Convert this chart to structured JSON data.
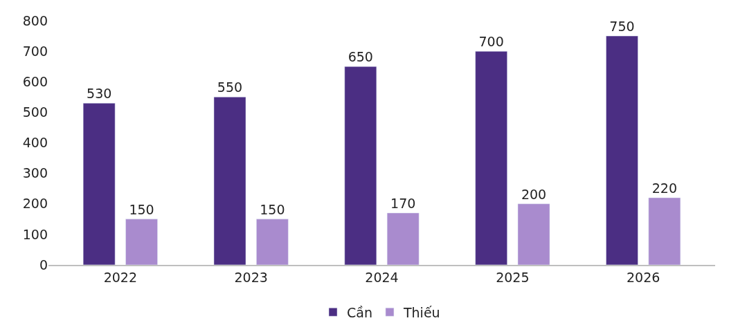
{
  "chart_data": {
    "type": "bar",
    "categories": [
      "2022",
      "2023",
      "2024",
      "2025",
      "2026"
    ],
    "series": [
      {
        "name": "Cần",
        "color": "#4b2e83",
        "values": [
          530,
          550,
          650,
          700,
          750
        ]
      },
      {
        "name": "Thiếu",
        "color": "#a98bce",
        "values": [
          150,
          150,
          170,
          200,
          220
        ]
      }
    ],
    "ylim": [
      0,
      800
    ],
    "yticks": [
      0,
      100,
      200,
      300,
      400,
      500,
      600,
      700,
      800
    ],
    "legend": "bottom",
    "data_labels": true
  }
}
